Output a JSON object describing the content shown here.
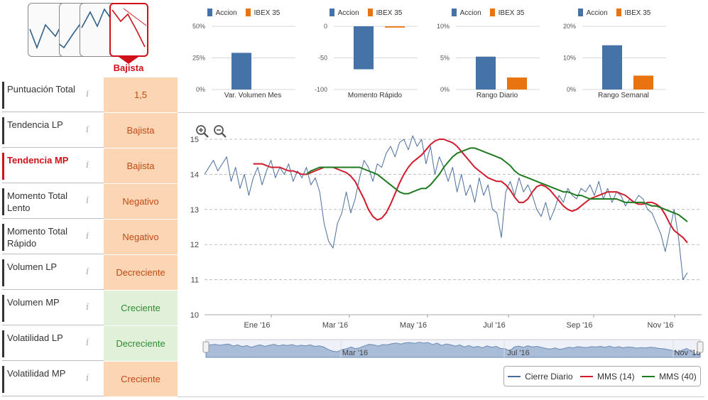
{
  "trend": {
    "options": [
      "Lateral",
      "Alcista",
      "Lateral alcista",
      "Bajista"
    ],
    "selected_label": "Bajista",
    "colors": {
      "accent": "#d0101b",
      "line": "#2e5f8a"
    }
  },
  "table": {
    "rows": [
      {
        "label": "Puntuación Total",
        "value": "1,5",
        "style": "orange"
      },
      {
        "label": "Tendencia LP",
        "value": "Bajista",
        "style": "orange"
      },
      {
        "label": "Tendencia MP",
        "value": "Bajista",
        "style": "orange",
        "active": true
      },
      {
        "label": "Momento Total Lento",
        "value": "Negativo",
        "style": "orange"
      },
      {
        "label": "Momento Total Rápido",
        "value": "Negativo",
        "style": "orange"
      },
      {
        "label": "Volumen LP",
        "value": "Decreciente",
        "style": "orange"
      },
      {
        "label": "Volumen MP",
        "value": "Creciente",
        "style": "green"
      },
      {
        "label": "Volatilidad LP",
        "value": "Decreciente",
        "style": "green"
      },
      {
        "label": "Volatilidad MP",
        "value": "Creciente",
        "style": "orange"
      }
    ],
    "info_glyph": "i"
  },
  "mini_legend": {
    "accion": "Accion",
    "ibex": "IBEX 35",
    "accion_color": "#4572a7",
    "ibex_color": "#e8730f"
  },
  "chart_data": [
    {
      "type": "bar",
      "title": "Var. Volumen Mes",
      "yticks": [
        "50%",
        "25%",
        "0%"
      ],
      "ylim": [
        0,
        50
      ],
      "values": {
        "Accion": 29,
        "IBEX 35": 0
      }
    },
    {
      "type": "bar",
      "title": "Momento Rápido",
      "yticks": [
        "0",
        "-50",
        "-100"
      ],
      "ylim": [
        -100,
        0
      ],
      "values": {
        "Accion": -68,
        "IBEX 35": -2
      }
    },
    {
      "type": "bar",
      "title": "Rango Diario",
      "yticks": [
        "10%",
        "5%",
        "0%"
      ],
      "ylim": [
        0,
        10
      ],
      "values": {
        "Accion": 5.2,
        "IBEX 35": 1.9
      }
    },
    {
      "type": "bar",
      "title": "Rango Semanal",
      "yticks": [
        "20%",
        "10%",
        "0%"
      ],
      "ylim": [
        0,
        20
      ],
      "values": {
        "Accion": 14,
        "IBEX 35": 4.4
      }
    },
    {
      "type": "line",
      "yticks": [
        "15",
        "14",
        "13",
        "12",
        "11",
        "10"
      ],
      "ylim": [
        10,
        15
      ],
      "xticks": [
        "Ene '16",
        "Mar '16",
        "May '16",
        "Jul '16",
        "Sep '16",
        "Nov '16"
      ],
      "navigator_ticks": [
        "Mar '16",
        "Jul '16",
        "Nov '16"
      ],
      "series": [
        {
          "name": "Cierre Diario",
          "color": "#4a6e9c",
          "values": [
            14.0,
            14.2,
            14.4,
            14.1,
            14.3,
            14.5,
            13.8,
            14.2,
            13.6,
            14.0,
            13.4,
            13.9,
            14.2,
            13.7,
            14.1,
            14.4,
            13.9,
            14.2,
            14.0,
            14.3,
            13.8,
            14.1,
            13.9,
            14.2,
            13.7,
            13.9,
            13.5,
            12.6,
            12.1,
            11.9,
            12.6,
            12.9,
            13.5,
            12.9,
            13.3,
            13.9,
            14.4,
            14.2,
            13.8,
            14.3,
            14.2,
            14.6,
            14.8,
            14.5,
            14.9,
            15.0,
            14.7,
            15.1,
            14.8,
            15.0,
            14.3,
            14.8,
            14.0,
            14.5,
            14.2,
            13.8,
            14.2,
            13.5,
            14.0,
            13.4,
            13.7,
            13.2,
            13.9,
            13.4,
            13.7,
            13.0,
            12.9,
            12.2,
            13.5,
            13.8,
            13.4,
            13.9,
            13.5,
            13.7,
            13.4,
            13.0,
            12.8,
            13.2,
            12.7,
            13.0,
            13.4,
            13.2,
            13.6,
            13.4,
            13.3,
            13.6,
            13.5,
            13.7,
            13.4,
            13.8,
            13.3,
            13.6,
            13.2,
            13.5,
            13.4,
            13.1,
            13.3,
            13.2,
            13.4,
            13.3,
            13.0,
            12.9,
            12.6,
            12.3,
            11.8,
            12.4,
            13.0,
            12.2,
            11.0,
            11.2
          ]
        },
        {
          "name": "MMS (14)",
          "color": "#d11b2c",
          "values": [
            14.3,
            14.3,
            14.3,
            14.25,
            14.2,
            14.2,
            14.2,
            14.15,
            14.1,
            14.1,
            14.05,
            14.0,
            14.0,
            14.05,
            14.1,
            14.15,
            14.2,
            14.2,
            14.2,
            14.15,
            14.1,
            14.05,
            13.95,
            13.8,
            13.55,
            13.3,
            13.0,
            12.8,
            12.7,
            12.75,
            12.9,
            13.15,
            13.45,
            13.75,
            14.0,
            14.2,
            14.35,
            14.45,
            14.55,
            14.7,
            14.85,
            14.95,
            15.0,
            15.0,
            14.95,
            14.9,
            14.8,
            14.65,
            14.5,
            14.35,
            14.2,
            14.1,
            14.0,
            13.9,
            13.85,
            13.8,
            13.8,
            13.7,
            13.55,
            13.35,
            13.2,
            13.2,
            13.3,
            13.5,
            13.65,
            13.7,
            13.65,
            13.55,
            13.4,
            13.25,
            13.1,
            13.0,
            12.95,
            13.0,
            13.1,
            13.2,
            13.3,
            13.35,
            13.4,
            13.45,
            13.5,
            13.5,
            13.5,
            13.45,
            13.4,
            13.3,
            13.2,
            13.15,
            13.15,
            13.2,
            13.2,
            13.15,
            13.05,
            12.85,
            12.6,
            12.4,
            12.3,
            12.2,
            12.05
          ]
        },
        {
          "name": "MMS (40)",
          "color": "#1f7a1f",
          "values": [
            14.0,
            14.1,
            14.15,
            14.2,
            14.2,
            14.2,
            14.2,
            14.2,
            14.2,
            14.2,
            14.2,
            14.2,
            14.2,
            14.15,
            14.1,
            14.05,
            14.0,
            13.9,
            13.8,
            13.7,
            13.6,
            13.5,
            13.45,
            13.45,
            13.5,
            13.55,
            13.6,
            13.6,
            13.7,
            13.85,
            14.0,
            14.2,
            14.35,
            14.5,
            14.6,
            14.65,
            14.7,
            14.75,
            14.75,
            14.7,
            14.65,
            14.6,
            14.55,
            14.5,
            14.45,
            14.35,
            14.25,
            14.1,
            14.0,
            13.95,
            13.9,
            13.85,
            13.8,
            13.75,
            13.7,
            13.65,
            13.6,
            13.55,
            13.5,
            13.5,
            13.45,
            13.4,
            13.4,
            13.35,
            13.3,
            13.3,
            13.3,
            13.3,
            13.3,
            13.3,
            13.3,
            13.25,
            13.2,
            13.2,
            13.2,
            13.2,
            13.2,
            13.15,
            13.1,
            13.1,
            13.05,
            13.0,
            12.95,
            12.9,
            12.85,
            12.75,
            12.65
          ]
        }
      ]
    }
  ],
  "legend": {
    "items": [
      "Cierre Diario",
      "MMS (14)",
      "MMS (40)"
    ]
  },
  "zoom": {
    "zoom_in": "zoom-in",
    "zoom_out": "zoom-out"
  }
}
